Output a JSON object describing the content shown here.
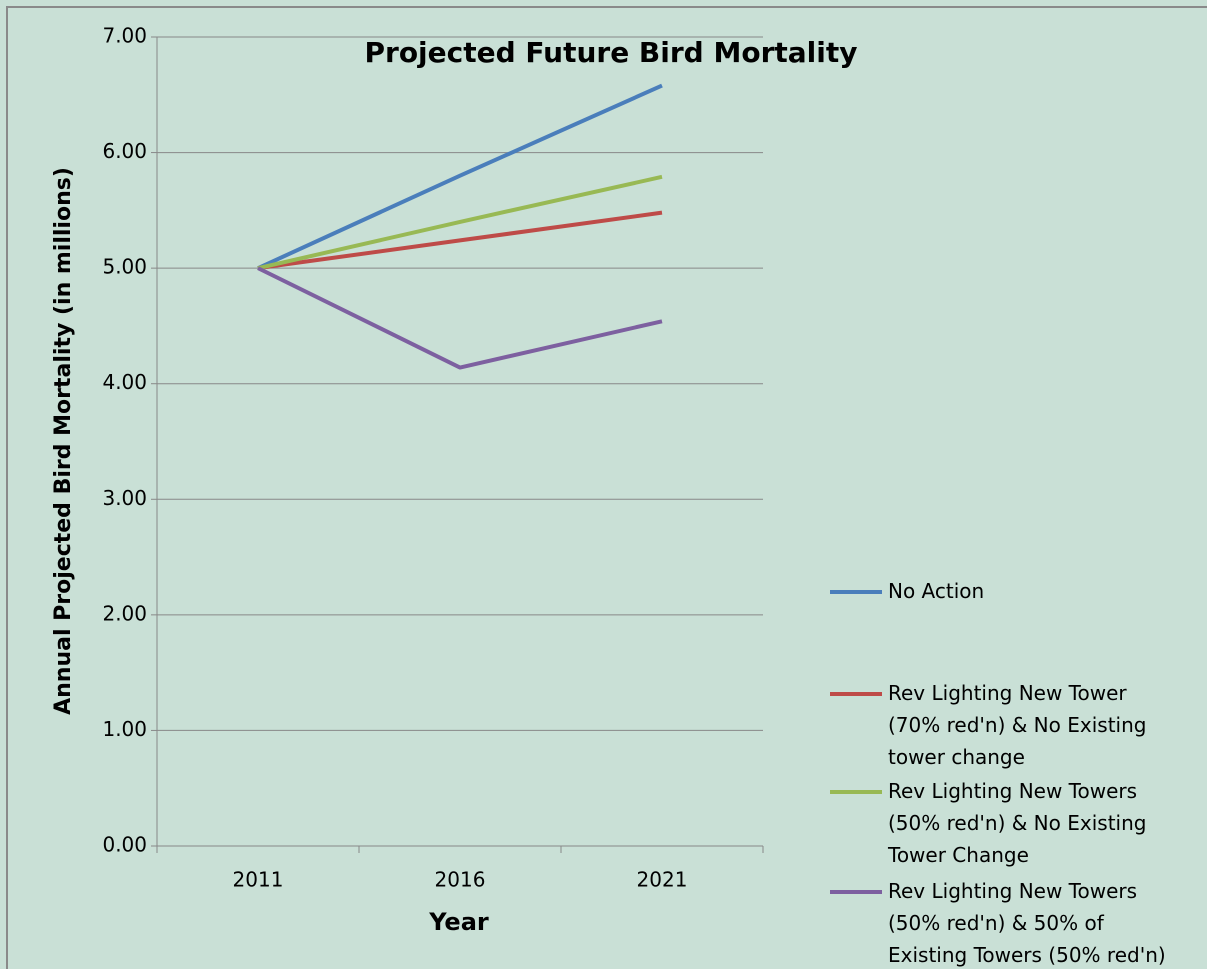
{
  "chart_data": {
    "type": "line",
    "title": "Projected Future Bird Mortality",
    "x_label": "Year",
    "y_label": "Annual Projected Bird Mortality  (in millions)",
    "categories": [
      "2011",
      "2016",
      "2021"
    ],
    "series": [
      {
        "name": "No Action",
        "color": "#4a7ebb",
        "values": [
          5.0,
          5.8,
          6.58
        ]
      },
      {
        "name": "Rev Lighting New Tower (70% red'n) & No Existing tower change",
        "color": "#be4b48",
        "values": [
          5.0,
          5.24,
          5.48
        ]
      },
      {
        "name": "Rev Lighting New Towers (50% red'n) & No Existing Tower Change",
        "color": "#98b954",
        "values": [
          5.0,
          5.4,
          5.79
        ]
      },
      {
        "name": "Rev Lighting New Towers (50% red'n) & 50% of Existing Towers (50% red'n)",
        "color": "#7d60a0",
        "values": [
          5.0,
          4.14,
          4.54
        ]
      }
    ],
    "ylim": [
      0,
      7
    ],
    "yticks": [
      {
        "value": 0,
        "label": "0.00"
      },
      {
        "value": 1,
        "label": "1.00"
      },
      {
        "value": 2,
        "label": "2.00"
      },
      {
        "value": 3,
        "label": "3.00"
      },
      {
        "value": 4,
        "label": "4.00"
      },
      {
        "value": 5,
        "label": "5.00"
      },
      {
        "value": 6,
        "label": "6.00"
      },
      {
        "value": 7,
        "label": "7.00"
      }
    ],
    "grid": true,
    "legend": "right"
  }
}
